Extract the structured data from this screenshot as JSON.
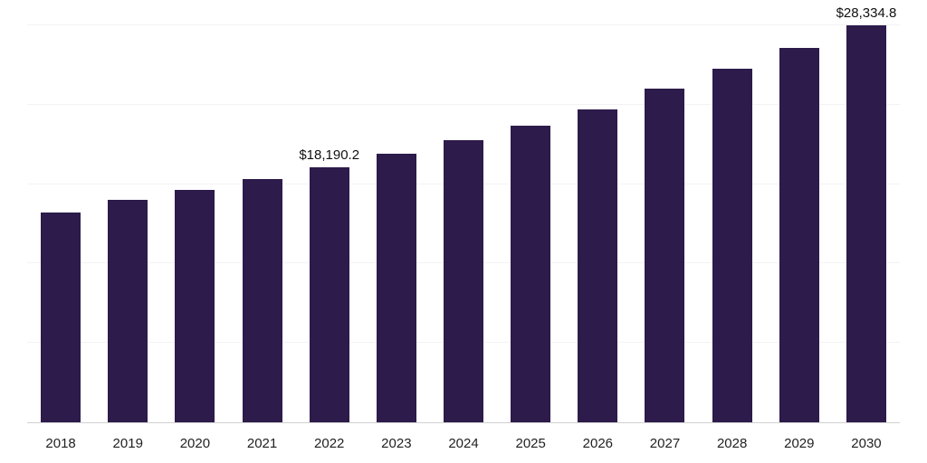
{
  "chart_data": {
    "type": "bar",
    "title": "",
    "xlabel": "",
    "ylabel": "",
    "categories": [
      "2018",
      "2019",
      "2020",
      "2021",
      "2022",
      "2023",
      "2024",
      "2025",
      "2026",
      "2027",
      "2028",
      "2029",
      "2030"
    ],
    "values": [
      15000,
      15900,
      16600,
      17350,
      18190.2,
      19150,
      20150,
      21200,
      22350,
      23800,
      25250,
      26700,
      28334.8
    ],
    "data_labels": {
      "2022": "$18,190.2",
      "2030": "$28,334.8"
    },
    "ylim": [
      0,
      28334.8
    ],
    "grid": "faint horizontal gridlines, no y-axis tick labels",
    "legend": "none",
    "bar_color": "#2d1b4b",
    "axis_line_color": "#d0d0d0",
    "gridline_color": "#f3f3f3",
    "data_label_color": "#111111",
    "tick_label_color": "#222222"
  }
}
